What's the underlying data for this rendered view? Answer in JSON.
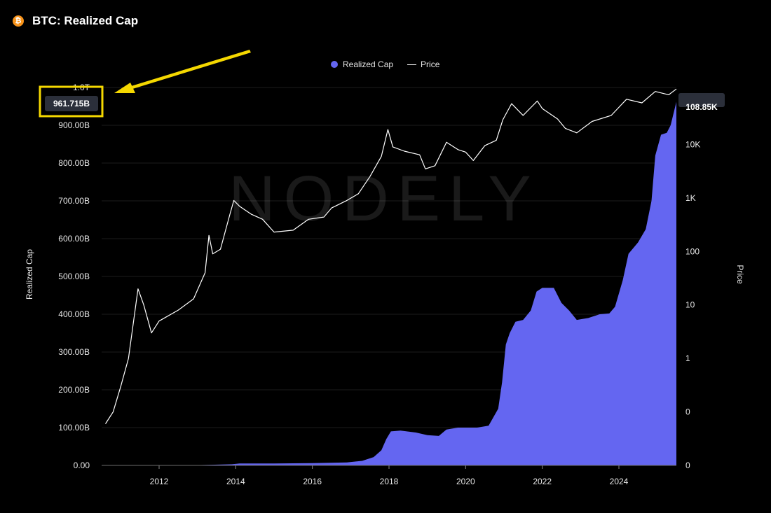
{
  "header": {
    "title": "BTC: Realized Cap",
    "icon": "bitcoin-icon",
    "icon_glyph": "₿"
  },
  "legend": {
    "items": [
      {
        "label": "Realized Cap",
        "color": "#6466f1",
        "marker": "dot"
      },
      {
        "label": "Price",
        "color": "#ffffff",
        "marker": "line"
      }
    ]
  },
  "watermark": "NODELY",
  "annotation": {
    "label": "961.715B",
    "highlight_color": "#f5d800",
    "arrow": "yellow-arrow-icon"
  },
  "price_badge": {
    "label": "108.85K"
  },
  "chart_data": {
    "type": "area",
    "title": "BTC: Realized Cap",
    "x_ticks": [
      "2012",
      "2014",
      "2016",
      "2018",
      "2020",
      "2022",
      "2024"
    ],
    "y_left": {
      "label": "Realized Cap",
      "ticks": [
        "0.00",
        "100.00B",
        "200.00B",
        "300.00B",
        "400.00B",
        "500.00B",
        "600.00B",
        "700.00B",
        "800.00B",
        "900.00B",
        "1.0T"
      ],
      "range": [
        0,
        1000
      ]
    },
    "y_right": {
      "label": "Price",
      "scale": "log",
      "ticks": [
        "0",
        "0",
        "1",
        "10",
        "100",
        "1K",
        "10K"
      ]
    },
    "grid": true,
    "legend_position": "top-center",
    "series": [
      {
        "name": "Realized Cap",
        "unit": "billion USD",
        "color": "#6466f1",
        "points": [
          [
            2010.6,
            0
          ],
          [
            2012.0,
            0.1
          ],
          [
            2013.0,
            0.8
          ],
          [
            2013.9,
            3
          ],
          [
            2014.1,
            5
          ],
          [
            2015.0,
            5
          ],
          [
            2016.0,
            6
          ],
          [
            2016.9,
            8
          ],
          [
            2017.3,
            12
          ],
          [
            2017.6,
            22
          ],
          [
            2017.8,
            40
          ],
          [
            2017.93,
            70
          ],
          [
            2018.05,
            90
          ],
          [
            2018.3,
            92
          ],
          [
            2018.7,
            87
          ],
          [
            2019.0,
            80
          ],
          [
            2019.3,
            78
          ],
          [
            2019.5,
            95
          ],
          [
            2019.8,
            100
          ],
          [
            2020.3,
            100
          ],
          [
            2020.6,
            105
          ],
          [
            2020.85,
            150
          ],
          [
            2020.95,
            220
          ],
          [
            2021.05,
            320
          ],
          [
            2021.15,
            350
          ],
          [
            2021.3,
            380
          ],
          [
            2021.5,
            385
          ],
          [
            2021.7,
            410
          ],
          [
            2021.85,
            460
          ],
          [
            2022.0,
            470
          ],
          [
            2022.3,
            470
          ],
          [
            2022.5,
            430
          ],
          [
            2022.7,
            410
          ],
          [
            2022.9,
            385
          ],
          [
            2023.2,
            390
          ],
          [
            2023.5,
            400
          ],
          [
            2023.75,
            402
          ],
          [
            2023.9,
            420
          ],
          [
            2024.1,
            490
          ],
          [
            2024.25,
            560
          ],
          [
            2024.5,
            590
          ],
          [
            2024.7,
            625
          ],
          [
            2024.85,
            700
          ],
          [
            2024.95,
            820
          ],
          [
            2025.1,
            875
          ],
          [
            2025.25,
            880
          ],
          [
            2025.35,
            900
          ],
          [
            2025.5,
            962
          ]
        ]
      },
      {
        "name": "Price",
        "unit": "USD",
        "color": "#ffffff",
        "points": [
          [
            2010.6,
            0.06
          ],
          [
            2010.8,
            0.1
          ],
          [
            2011.0,
            0.3
          ],
          [
            2011.2,
            1
          ],
          [
            2011.45,
            20
          ],
          [
            2011.6,
            10
          ],
          [
            2011.8,
            3
          ],
          [
            2012.0,
            5
          ],
          [
            2012.5,
            8
          ],
          [
            2012.9,
            13
          ],
          [
            2013.2,
            40
          ],
          [
            2013.3,
            200
          ],
          [
            2013.4,
            90
          ],
          [
            2013.6,
            110
          ],
          [
            2013.85,
            500
          ],
          [
            2013.95,
            900
          ],
          [
            2014.1,
            700
          ],
          [
            2014.4,
            500
          ],
          [
            2014.7,
            400
          ],
          [
            2015.0,
            230
          ],
          [
            2015.5,
            250
          ],
          [
            2015.9,
            400
          ],
          [
            2016.3,
            440
          ],
          [
            2016.5,
            650
          ],
          [
            2016.9,
            900
          ],
          [
            2017.2,
            1200
          ],
          [
            2017.5,
            2500
          ],
          [
            2017.8,
            6000
          ],
          [
            2017.97,
            19000
          ],
          [
            2018.1,
            9000
          ],
          [
            2018.4,
            7500
          ],
          [
            2018.8,
            6400
          ],
          [
            2018.95,
            3500
          ],
          [
            2019.2,
            4000
          ],
          [
            2019.5,
            11000
          ],
          [
            2019.8,
            8000
          ],
          [
            2020.0,
            7200
          ],
          [
            2020.2,
            5000
          ],
          [
            2020.5,
            9500
          ],
          [
            2020.8,
            12000
          ],
          [
            2020.97,
            29000
          ],
          [
            2021.2,
            58000
          ],
          [
            2021.5,
            35000
          ],
          [
            2021.87,
            65000
          ],
          [
            2022.0,
            47000
          ],
          [
            2022.4,
            30000
          ],
          [
            2022.6,
            20000
          ],
          [
            2022.9,
            16500
          ],
          [
            2023.3,
            27000
          ],
          [
            2023.8,
            35000
          ],
          [
            2024.2,
            70000
          ],
          [
            2024.6,
            60000
          ],
          [
            2024.95,
            98000
          ],
          [
            2025.3,
            85000
          ],
          [
            2025.5,
            108850
          ]
        ]
      }
    ]
  }
}
